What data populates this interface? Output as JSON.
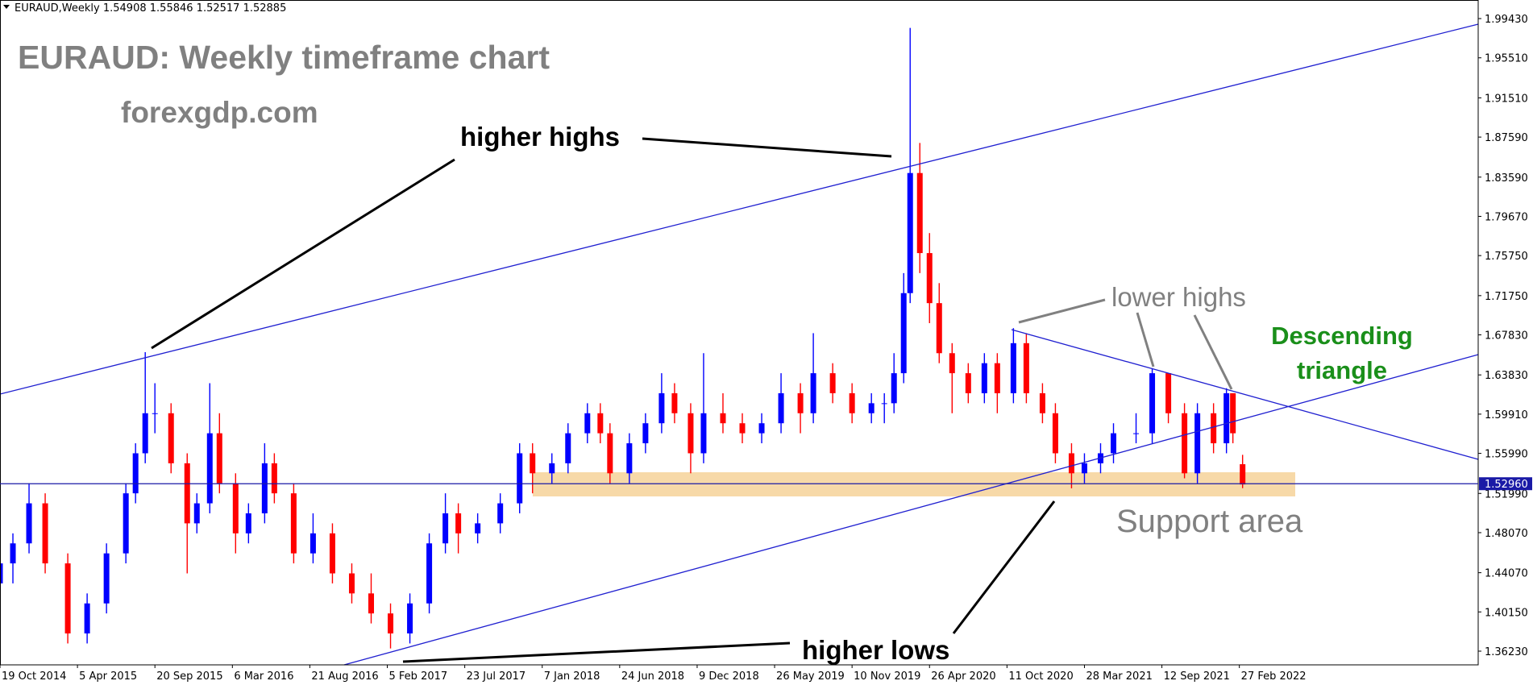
{
  "chart_data": {
    "type": "candlestick",
    "symbol": "EURAUD,Weekly",
    "header_ohlc": [
      1.54908,
      1.55846,
      1.52517,
      1.52885
    ],
    "title": "EURAUD: Weekly timeframe chart",
    "subtitle": "forexgdp.com",
    "annotations": [
      "higher highs",
      "higher lows",
      "lower highs",
      "Descending",
      "triangle",
      "Support area"
    ],
    "up_color": "#0000ff",
    "down_color": "#ff0000",
    "x": [
      0,
      4,
      9,
      14,
      21,
      27,
      33,
      39,
      42,
      45,
      48,
      53,
      58,
      61,
      65,
      68,
      73,
      77,
      82,
      85,
      91,
      97,
      103,
      109,
      115,
      121,
      127,
      133,
      138,
      142,
      148,
      155,
      161,
      165,
      171,
      176,
      182,
      186,
      189,
      195,
      200,
      205,
      209,
      214,
      218,
      224,
      230,
      236,
      242,
      248,
      252,
      258,
      264,
      270,
      274,
      277,
      280,
      282,
      285,
      288,
      291,
      295,
      300,
      305,
      309,
      314,
      318,
      323,
      327,
      332,
      336,
      341,
      345,
      352,
      357,
      362,
      367,
      371,
      376,
      380,
      382,
      385
    ],
    "open": [
      1.43,
      1.45,
      1.47,
      1.51,
      1.45,
      1.38,
      1.41,
      1.46,
      1.52,
      1.56,
      1.6,
      1.6,
      1.55,
      1.49,
      1.51,
      1.58,
      1.53,
      1.48,
      1.5,
      1.55,
      1.52,
      1.46,
      1.48,
      1.44,
      1.42,
      1.4,
      1.38,
      1.41,
      1.47,
      1.5,
      1.48,
      1.49,
      1.51,
      1.56,
      1.54,
      1.55,
      1.58,
      1.6,
      1.58,
      1.54,
      1.57,
      1.59,
      1.62,
      1.6,
      1.56,
      1.6,
      1.59,
      1.58,
      1.59,
      1.62,
      1.6,
      1.64,
      1.62,
      1.6,
      1.61,
      1.61,
      1.64,
      1.72,
      1.84,
      1.76,
      1.71,
      1.66,
      1.64,
      1.62,
      1.65,
      1.62,
      1.67,
      1.62,
      1.6,
      1.56,
      1.54,
      1.55,
      1.56,
      1.58,
      1.58,
      1.64,
      1.6,
      1.54,
      1.6,
      1.57,
      1.62,
      1.54908
    ],
    "high": [
      1.46,
      1.48,
      1.53,
      1.52,
      1.46,
      1.42,
      1.47,
      1.53,
      1.57,
      1.661,
      1.63,
      1.61,
      1.56,
      1.52,
      1.63,
      1.6,
      1.54,
      1.51,
      1.57,
      1.56,
      1.53,
      1.5,
      1.49,
      1.45,
      1.44,
      1.41,
      1.42,
      1.48,
      1.52,
      1.51,
      1.5,
      1.52,
      1.57,
      1.57,
      1.56,
      1.59,
      1.61,
      1.61,
      1.59,
      1.58,
      1.6,
      1.64,
      1.63,
      1.61,
      1.66,
      1.62,
      1.6,
      1.6,
      1.64,
      1.63,
      1.68,
      1.65,
      1.63,
      1.62,
      1.62,
      1.66,
      1.74,
      1.985,
      1.87,
      1.78,
      1.73,
      1.67,
      1.65,
      1.66,
      1.66,
      1.685,
      1.68,
      1.63,
      1.61,
      1.57,
      1.56,
      1.57,
      1.59,
      1.6,
      1.645,
      1.64,
      1.61,
      1.61,
      1.61,
      1.625,
      1.62,
      1.55846
    ],
    "low": [
      1.42,
      1.43,
      1.46,
      1.44,
      1.37,
      1.37,
      1.4,
      1.45,
      1.51,
      1.55,
      1.58,
      1.54,
      1.44,
      1.48,
      1.5,
      1.52,
      1.46,
      1.47,
      1.49,
      1.51,
      1.45,
      1.45,
      1.43,
      1.41,
      1.39,
      1.365,
      1.37,
      1.4,
      1.46,
      1.46,
      1.47,
      1.48,
      1.5,
      1.52,
      1.53,
      1.54,
      1.57,
      1.57,
      1.53,
      1.53,
      1.56,
      1.58,
      1.59,
      1.54,
      1.55,
      1.58,
      1.57,
      1.57,
      1.58,
      1.58,
      1.59,
      1.61,
      1.59,
      1.59,
      1.59,
      1.6,
      1.63,
      1.71,
      1.74,
      1.69,
      1.65,
      1.6,
      1.61,
      1.61,
      1.6,
      1.61,
      1.61,
      1.59,
      1.55,
      1.525,
      1.53,
      1.54,
      1.55,
      1.57,
      1.57,
      1.59,
      1.535,
      1.53,
      1.56,
      1.56,
      1.57,
      1.52517
    ],
    "close": [
      1.45,
      1.47,
      1.51,
      1.45,
      1.38,
      1.41,
      1.46,
      1.52,
      1.56,
      1.6,
      1.6,
      1.55,
      1.49,
      1.51,
      1.58,
      1.53,
      1.48,
      1.5,
      1.55,
      1.52,
      1.46,
      1.48,
      1.44,
      1.42,
      1.4,
      1.38,
      1.41,
      1.47,
      1.5,
      1.48,
      1.49,
      1.51,
      1.56,
      1.54,
      1.55,
      1.58,
      1.6,
      1.58,
      1.54,
      1.57,
      1.59,
      1.62,
      1.6,
      1.56,
      1.6,
      1.59,
      1.58,
      1.59,
      1.62,
      1.6,
      1.64,
      1.62,
      1.6,
      1.61,
      1.61,
      1.64,
      1.72,
      1.84,
      1.76,
      1.71,
      1.66,
      1.64,
      1.62,
      1.65,
      1.62,
      1.67,
      1.62,
      1.6,
      1.56,
      1.54,
      1.55,
      1.56,
      1.58,
      1.58,
      1.64,
      1.6,
      1.54,
      1.6,
      1.57,
      1.62,
      1.58,
      1.52885
    ],
    "xlim": [
      0,
      458
    ],
    "ylim": [
      1.34862,
      2.01286
    ],
    "xticks": [
      {
        "value": 0,
        "label": "19 Oct 2014"
      },
      {
        "value": 24,
        "label": "5 Apr 2015"
      },
      {
        "value": 48,
        "label": "20 Sep 2015"
      },
      {
        "value": 72,
        "label": "6 Mar 2016"
      },
      {
        "value": 96,
        "label": "21 Aug 2016"
      },
      {
        "value": 120,
        "label": "5 Feb 2017"
      },
      {
        "value": 144,
        "label": "23 Jul 2017"
      },
      {
        "value": 168,
        "label": "7 Jan 2018"
      },
      {
        "value": 192,
        "label": "24 Jun 2018"
      },
      {
        "value": 216,
        "label": "9 Dec 2018"
      },
      {
        "value": 240,
        "label": "26 May 2019"
      },
      {
        "value": 264,
        "label": "10 Nov 2019"
      },
      {
        "value": 288,
        "label": "26 Apr 2020"
      },
      {
        "value": 312,
        "label": "11 Oct 2020"
      },
      {
        "value": 336,
        "label": "28 Mar 2021"
      },
      {
        "value": 360,
        "label": "12 Sep 2021"
      },
      {
        "value": 384,
        "label": "27 Feb 2022"
      }
    ],
    "yticks": [
      {
        "value": 1.9943,
        "label": "1.99430"
      },
      {
        "value": 1.9551,
        "label": "1.95510"
      },
      {
        "value": 1.9151,
        "label": "1.91510"
      },
      {
        "value": 1.8759,
        "label": "1.87590"
      },
      {
        "value": 1.8359,
        "label": "1.83590"
      },
      {
        "value": 1.7967,
        "label": "1.79670"
      },
      {
        "value": 1.7575,
        "label": "1.75750"
      },
      {
        "value": 1.7175,
        "label": "1.71750"
      },
      {
        "value": 1.6783,
        "label": "1.67830"
      },
      {
        "value": 1.6383,
        "label": "1.63830"
      },
      {
        "value": 1.5991,
        "label": "1.59910"
      },
      {
        "value": 1.5599,
        "label": "1.55990"
      },
      {
        "value": 1.5199,
        "label": "1.51990"
      },
      {
        "value": 1.4807,
        "label": "1.48070"
      },
      {
        "value": 1.4407,
        "label": "1.44070"
      },
      {
        "value": 1.4015,
        "label": "1.40150"
      },
      {
        "value": 1.3623,
        "label": "1.36230"
      }
    ],
    "current_price": {
      "value": 1.5296,
      "label": "1.52960"
    }
  }
}
